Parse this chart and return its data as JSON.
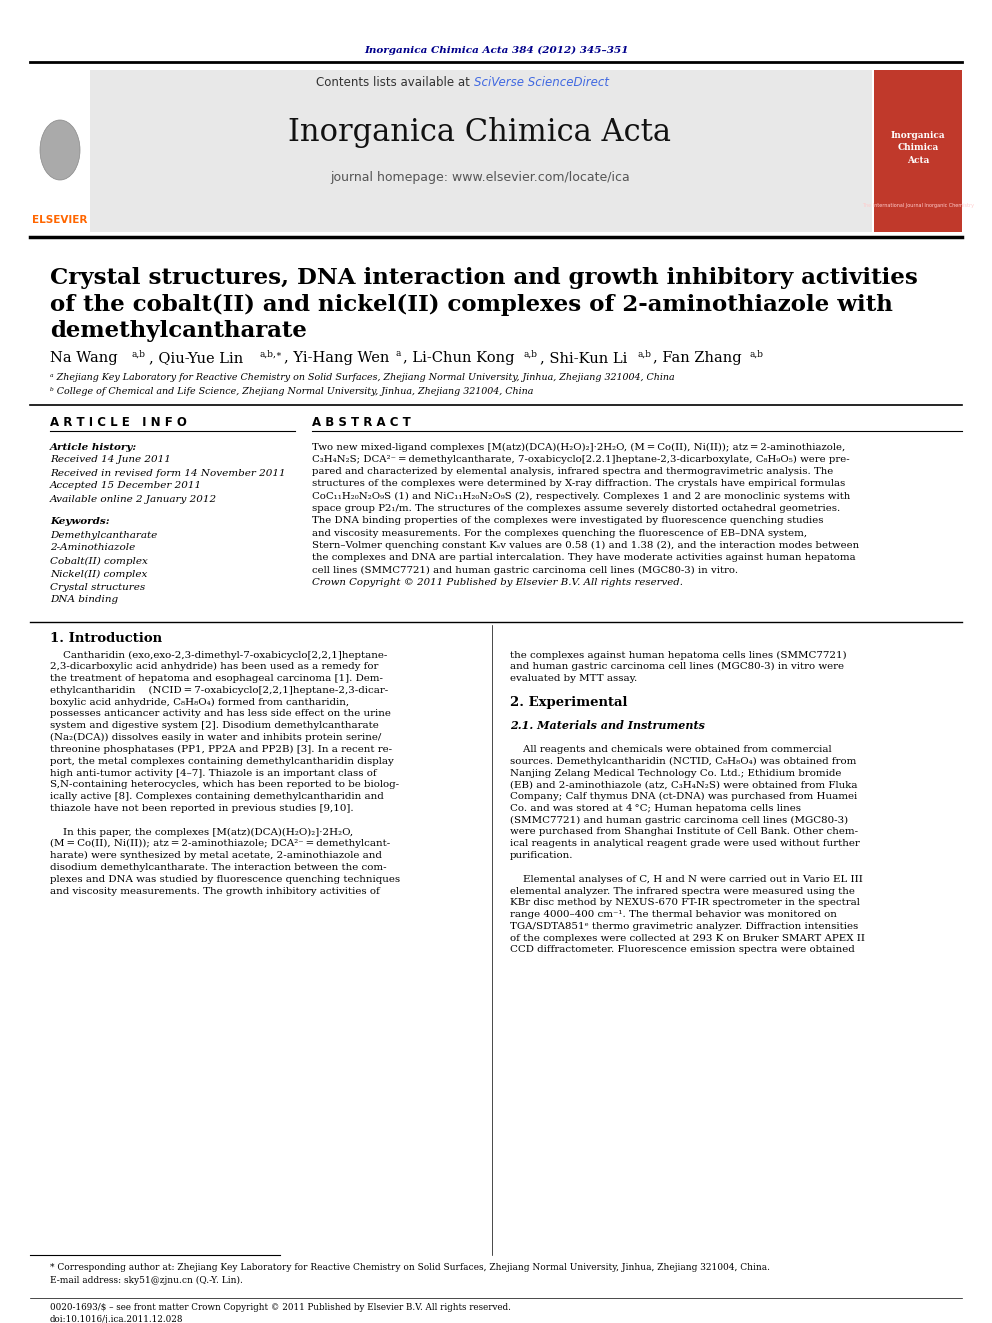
{
  "page_bg": "#ffffff",
  "top_journal_ref": "Inorganica Chimica Acta 384 (2012) 345–351",
  "top_journal_ref_color": "#00008B",
  "header_bg": "#e8e8e8",
  "header_journal_title": "Inorganica Chimica Acta",
  "header_contents_text": "Contents lists available at ",
  "header_sciverse": "SciVerse ScienceDirect",
  "header_homepage": "journal homepage: www.elsevier.com/locate/ica",
  "article_title_line1": "Crystal structures, DNA interaction and growth inhibitory activities",
  "article_title_line2": "of the cobalt(II) and nickel(II) complexes of 2-aminothiazole with",
  "article_title_line3": "demethylcantharate",
  "affiliation_a": "ᵃ Zhejiang Key Laboratory for Reactive Chemistry on Solid Surfaces, Zhejiang Normal University, Jinhua, Zhejiang 321004, China",
  "affiliation_b": "ᵇ College of Chemical and Life Science, Zhejiang Normal University, Jinhua, Zhejiang 321004, China",
  "article_info_title": "A R T I C L E   I N F O",
  "abstract_title": "A B S T R A C T",
  "article_history_label": "Article history:",
  "received_label": "Received 14 June 2011",
  "revised_label": "Received in revised form 14 November 2011",
  "accepted_label": "Accepted 15 December 2011",
  "available_label": "Available online 2 January 2012",
  "keywords_label": "Keywords:",
  "kw1": "Demethylcantharate",
  "kw2": "2-Aminothiazole",
  "kw3": "Cobalt(II) complex",
  "kw4": "Nickel(II) complex",
  "kw5": "Crystal structures",
  "kw6": "DNA binding",
  "intro_title": "1. Introduction",
  "section2_title": "2. Experimental",
  "section21_title": "2.1. Materials and Instruments",
  "footnote_star": "* Corresponding author at: Zhejiang Key Laboratory for Reactive Chemistry on Solid Surfaces, Zhejiang Normal University, Jinhua, Zhejiang 321004, China.",
  "footnote_email": "E-mail address: sky51@zjnu.cn (Q.-Y. Lin).",
  "bottom_issn": "0020-1693/$ – see front matter Crown Copyright © 2011 Published by Elsevier B.V. All rights reserved.",
  "bottom_doi": "doi:10.1016/j.ica.2011.12.028",
  "link_color": "#4169E1",
  "dark_navy": "#00008B",
  "orange_elsevier": "#FF6600",
  "abstract_lines": [
    "Two new mixed-ligand complexes [M(atz)(DCA)(H₂O)₂]·2H₂O, (M = Co(II), Ni(II)); atz = 2-aminothiazole,",
    "C₃H₄N₂S; DCA²⁻ = demethylcantharate, 7-oxabicyclo[2.2.1]heptane-2,3-dicarboxylate, C₈H₉O₅) were pre-",
    "pared and characterized by elemental analysis, infrared spectra and thermogravimetric analysis. The",
    "structures of the complexes were determined by X-ray diffraction. The crystals have empirical formulas",
    "CoC₁₁H₂₀N₂O₉S (1) and NiC₁₁H₂₀N₂O₉S (2), respectively. Complexes 1 and 2 are monoclinic systems with",
    "space group P2₁/m. The structures of the complexes assume severely distorted octahedral geometries.",
    "The DNA binding properties of the complexes were investigated by fluorescence quenching studies",
    "and viscosity measurements. For the complexes quenching the fluorescence of EB–DNA system,",
    "Stern–Volmer quenching constant Kₛv values are 0.58 (1) and 1.38 (2), and the interaction modes between",
    "the complexes and DNA are partial intercalation. They have moderate activities against human hepatoma",
    "cell lines (SMMC7721) and human gastric carcinoma cell lines (MGC80-3) in vitro.",
    "Crown Copyright © 2011 Published by Elsevier B.V. All rights reserved."
  ],
  "intro_lines_left": [
    "    Cantharidin (exo,exo-2,3-dimethyl-7-oxabicyclo[2,2,1]heptane-",
    "2,3-dicarboxylic acid anhydride) has been used as a remedy for",
    "the treatment of hepatoma and esophageal carcinoma [1]. Dem-",
    "ethylcantharidin    (NCID = 7-oxabicyclo[2,2,1]heptane-2,3-dicar-",
    "boxylic acid anhydride, C₈H₈O₄) formed from cantharidin,",
    "possesses anticancer activity and has less side effect on the urine",
    "system and digestive system [2]. Disodium demethylcantharate",
    "(Na₂(DCA)) dissolves easily in water and inhibits protein serine/",
    "threonine phosphatases (PP1, PP2A and PP2B) [3]. In a recent re-",
    "port, the metal complexes containing demethylcantharidin display",
    "high anti-tumor activity [4–7]. Thiazole is an important class of",
    "S,N-containing heterocycles, which has been reported to be biolog-",
    "ically active [8]. Complexes containing demethylcantharidin and",
    "thiazole have not been reported in previous studies [9,10].",
    "",
    "    In this paper, the complexes [M(atz)(DCA)(H₂O)₂]·2H₂O,",
    "(M = Co(II), Ni(II)); atz = 2-aminothiazole; DCA²⁻ = demethylcant-",
    "harate) were synthesized by metal acetate, 2-aminothiazole and",
    "disodium demethylcantharate. The interaction between the com-",
    "plexes and DNA was studied by fluorescence quenching techniques",
    "and viscosity measurements. The growth inhibitory activities of"
  ],
  "intro_lines_right": [
    "the complexes against human hepatoma cells lines (SMMC7721)",
    "and human gastric carcinoma cell lines (MGC80-3) in vitro were",
    "evaluated by MTT assay.",
    "",
    "2. Experimental",
    "",
    "2.1. Materials and Instruments",
    "",
    "    All reagents and chemicals were obtained from commercial",
    "sources. Demethylcantharidin (NCTID, C₈H₈O₄) was obtained from",
    "Nanjing Zelang Medical Technology Co. Ltd.; Ethidium bromide",
    "(EB) and 2-aminothiazole (atz, C₃H₄N₂S) were obtained from Fluka",
    "Company; Calf thymus DNA (ct-DNA) was purchased from Huamei",
    "Co. and was stored at 4 °C; Human hepatoma cells lines",
    "(SMMC7721) and human gastric carcinoma cell lines (MGC80-3)",
    "were purchased from Shanghai Institute of Cell Bank. Other chem-",
    "ical reagents in analytical reagent grade were used without further",
    "purification.",
    "",
    "    Elemental analyses of C, H and N were carried out in Vario EL III",
    "elemental analyzer. The infrared spectra were measured using the",
    "KBr disc method by NEXUS-670 FT-IR spectrometer in the spectral",
    "range 4000–400 cm⁻¹. The thermal behavior was monitored on",
    "TGA/SDTA851ᵉ thermo gravimetric analyzer. Diffraction intensities",
    "of the complexes were collected at 293 K on Bruker SMART APEX II",
    "CCD diffractometer. Fluorescence emission spectra were obtained"
  ]
}
